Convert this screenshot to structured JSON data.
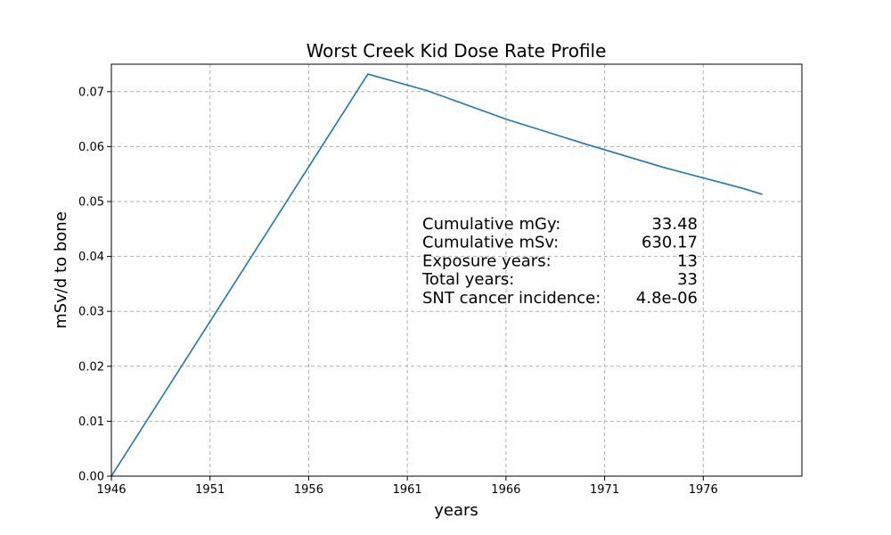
{
  "chart_data": {
    "type": "line",
    "title": "Worst Creek Kid Dose Rate Profile",
    "xlabel": "years",
    "ylabel": "mSv/d to bone",
    "xlim": [
      1946,
      1981
    ],
    "ylim": [
      0,
      0.075
    ],
    "grid": true,
    "x_ticks": [
      1946,
      1951,
      1956,
      1961,
      1966,
      1971,
      1976
    ],
    "x_tick_labels": [
      "1946",
      "1951",
      "1956",
      "1961",
      "1966",
      "1971",
      "1976"
    ],
    "y_ticks": [
      0,
      0.01,
      0.02,
      0.03,
      0.04,
      0.05,
      0.06,
      0.07
    ],
    "y_tick_labels": [
      "0.00",
      "0.01",
      "0.02",
      "0.03",
      "0.04",
      "0.05",
      "0.06",
      "0.07"
    ],
    "series": [
      {
        "color": "#1f77b4",
        "x": [
          1946,
          1959,
          1962,
          1966,
          1970,
          1974,
          1978,
          1979
        ],
        "y": [
          0,
          0.0732,
          0.0702,
          0.065,
          0.0605,
          0.0562,
          0.0524,
          0.0513
        ]
      }
    ],
    "annotations": [
      {
        "label": "Cumulative mGy:",
        "value": "33.48"
      },
      {
        "label": "Cumulative mSv:",
        "value": "630.17"
      },
      {
        "label": "Exposure years:",
        "value": "13"
      },
      {
        "label": "Total years:",
        "value": "33"
      },
      {
        "label": "SNT cancer incidence:",
        "value": "4.8e-06"
      }
    ]
  }
}
